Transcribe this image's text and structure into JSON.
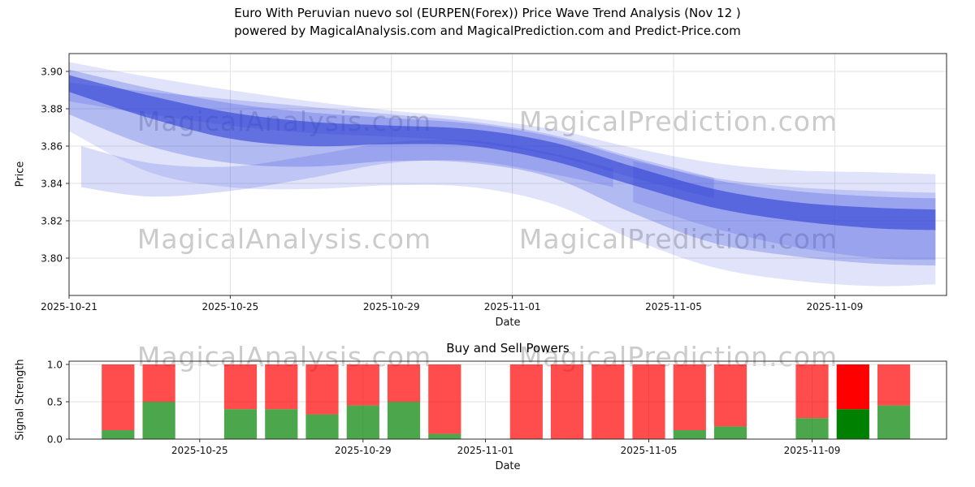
{
  "title": {
    "line1": "Euro With Peruvian nuevo sol (EURPEN(Forex)) Price Wave Trend Analysis (Nov 12 )",
    "line2": "powered by MagicalAnalysis.com and MagicalPrediction.com and Predict-Price.com"
  },
  "watermarks": [
    "MagicalAnalysis.com",
    "MagicalPrediction.com"
  ],
  "colors": {
    "band_blue": "#3d4fe0",
    "band_core_blue": "#2d3fd4",
    "sell_red": "#ff0000",
    "buy_green": "#008000",
    "bar_alpha": 0.7,
    "highlight_alpha": 1.0,
    "watermark": "#cbcbcb",
    "grid": "#e2e2e2",
    "frame": "#2b2b2b"
  },
  "chart_data": [
    {
      "type": "area",
      "title": "Price Wave Trend",
      "xlabel": "Date",
      "ylabel": "Price",
      "x_unit": "days since 2025-10-21",
      "xlim": [
        0,
        21.8
      ],
      "ylim": [
        3.78,
        3.91
      ],
      "grid": true,
      "yticks": [
        {
          "label": "3.80",
          "value": 3.8
        },
        {
          "label": "3.82",
          "value": 3.82
        },
        {
          "label": "3.84",
          "value": 3.84
        },
        {
          "label": "3.86",
          "value": 3.86
        },
        {
          "label": "3.88",
          "value": 3.88
        },
        {
          "label": "3.90",
          "value": 3.9
        }
      ],
      "xticks": [
        {
          "label": "2025-10-21",
          "day": 0
        },
        {
          "label": "2025-10-25",
          "day": 4
        },
        {
          "label": "2025-10-29",
          "day": 8
        },
        {
          "label": "2025-11-01",
          "day": 11
        },
        {
          "label": "2025-11-05",
          "day": 15
        },
        {
          "label": "2025-11-09",
          "day": 19
        }
      ],
      "bands": [
        {
          "name": "outer",
          "opacity": 0.16,
          "days": [
            0,
            2,
            4,
            6,
            8,
            10,
            12,
            14,
            16,
            18,
            20,
            21.5
          ],
          "high": [
            3.905,
            3.897,
            3.89,
            3.884,
            3.879,
            3.875,
            3.869,
            3.859,
            3.851,
            3.847,
            3.846,
            3.845
          ],
          "low": [
            3.868,
            3.846,
            3.838,
            3.837,
            3.839,
            3.838,
            3.829,
            3.81,
            3.795,
            3.788,
            3.785,
            3.786
          ]
        },
        {
          "name": "mid",
          "opacity": 0.28,
          "days": [
            0,
            2,
            4,
            6,
            8,
            10,
            12,
            14,
            16,
            18,
            20,
            21.5
          ],
          "high": [
            3.901,
            3.891,
            3.883,
            3.878,
            3.875,
            3.872,
            3.865,
            3.853,
            3.842,
            3.836,
            3.833,
            3.832
          ],
          "low": [
            3.877,
            3.86,
            3.851,
            3.849,
            3.852,
            3.851,
            3.843,
            3.824,
            3.808,
            3.801,
            3.797,
            3.796
          ]
        },
        {
          "name": "streak-low",
          "opacity": 0.2,
          "days": [
            0.3,
            2,
            4,
            6,
            8,
            10,
            12,
            13.5
          ],
          "high": [
            3.86,
            3.851,
            3.849,
            3.855,
            3.862,
            3.863,
            3.856,
            3.848
          ],
          "low": [
            3.838,
            3.833,
            3.836,
            3.843,
            3.851,
            3.852,
            3.845,
            3.838
          ]
        },
        {
          "name": "streak-high",
          "opacity": 0.22,
          "days": [
            0,
            2,
            4,
            6,
            8,
            10,
            12,
            14,
            16
          ],
          "high": [
            3.894,
            3.889,
            3.885,
            3.881,
            3.877,
            3.873,
            3.866,
            3.854,
            3.843
          ],
          "low": [
            3.884,
            3.877,
            3.871,
            3.867,
            3.865,
            3.862,
            3.855,
            3.843,
            3.832
          ]
        },
        {
          "name": "right-lobe",
          "opacity": 0.2,
          "days": [
            14,
            16,
            18,
            20,
            21.5
          ],
          "high": [
            3.852,
            3.843,
            3.838,
            3.836,
            3.835
          ],
          "low": [
            3.83,
            3.816,
            3.806,
            3.8,
            3.799
          ]
        },
        {
          "name": "core",
          "opacity": 0.6,
          "color": "#2d3fd4",
          "days": [
            0,
            2,
            4,
            6,
            8,
            10,
            12,
            14,
            16,
            18,
            20,
            21.5
          ],
          "high": [
            3.898,
            3.887,
            3.878,
            3.873,
            3.871,
            3.869,
            3.862,
            3.849,
            3.837,
            3.83,
            3.827,
            3.826
          ],
          "low": [
            3.889,
            3.875,
            3.864,
            3.86,
            3.861,
            3.86,
            3.852,
            3.839,
            3.827,
            3.82,
            3.816,
            3.815
          ]
        }
      ]
    },
    {
      "type": "bar",
      "title": "Buy and Sell Powers",
      "xlabel": "Date",
      "ylabel": "Signal Strength",
      "ylim": [
        0,
        1.04
      ],
      "stacked": true,
      "series": [
        {
          "name": "buy",
          "color": "#008000"
        },
        {
          "name": "sell",
          "color": "#ff0000"
        }
      ],
      "yticks": [
        {
          "label": "0.0",
          "value": 0.0
        },
        {
          "label": "0.5",
          "value": 0.5
        },
        {
          "label": "1.0",
          "value": 1.0
        }
      ],
      "xticks": [
        {
          "label": "2025-10-25",
          "day": 4
        },
        {
          "label": "2025-10-29",
          "day": 8
        },
        {
          "label": "2025-11-01",
          "day": 11
        },
        {
          "label": "2025-11-05",
          "day": 15
        },
        {
          "label": "2025-11-09",
          "day": 19
        }
      ],
      "bars": [
        {
          "date": "2025-10-23",
          "sell": 1.0,
          "buy": 0.12,
          "highlight": false
        },
        {
          "date": "2025-10-24",
          "sell": 1.0,
          "buy": 0.5,
          "highlight": false
        },
        {
          "date": "2025-10-26",
          "sell": 1.0,
          "buy": 0.4,
          "highlight": false
        },
        {
          "date": "2025-10-27",
          "sell": 1.0,
          "buy": 0.4,
          "highlight": false
        },
        {
          "date": "2025-10-28",
          "sell": 1.0,
          "buy": 0.33,
          "highlight": false
        },
        {
          "date": "2025-10-29",
          "sell": 1.0,
          "buy": 0.45,
          "highlight": false
        },
        {
          "date": "2025-10-30",
          "sell": 1.0,
          "buy": 0.5,
          "highlight": false
        },
        {
          "date": "2025-10-31",
          "sell": 1.0,
          "buy": 0.07,
          "highlight": false
        },
        {
          "date": "2025-11-02",
          "sell": 1.0,
          "buy": 0.0,
          "highlight": false
        },
        {
          "date": "2025-11-03",
          "sell": 1.0,
          "buy": 0.0,
          "highlight": false
        },
        {
          "date": "2025-11-04",
          "sell": 1.0,
          "buy": 0.0,
          "highlight": false
        },
        {
          "date": "2025-11-05",
          "sell": 1.0,
          "buy": 0.0,
          "highlight": false
        },
        {
          "date": "2025-11-06",
          "sell": 1.0,
          "buy": 0.12,
          "highlight": false
        },
        {
          "date": "2025-11-07",
          "sell": 1.0,
          "buy": 0.17,
          "highlight": false
        },
        {
          "date": "2025-11-09",
          "sell": 1.0,
          "buy": 0.28,
          "highlight": false
        },
        {
          "date": "2025-11-10",
          "sell": 1.0,
          "buy": 0.4,
          "highlight": true
        },
        {
          "date": "2025-11-11",
          "sell": 1.0,
          "buy": 0.45,
          "highlight": false
        }
      ]
    }
  ]
}
